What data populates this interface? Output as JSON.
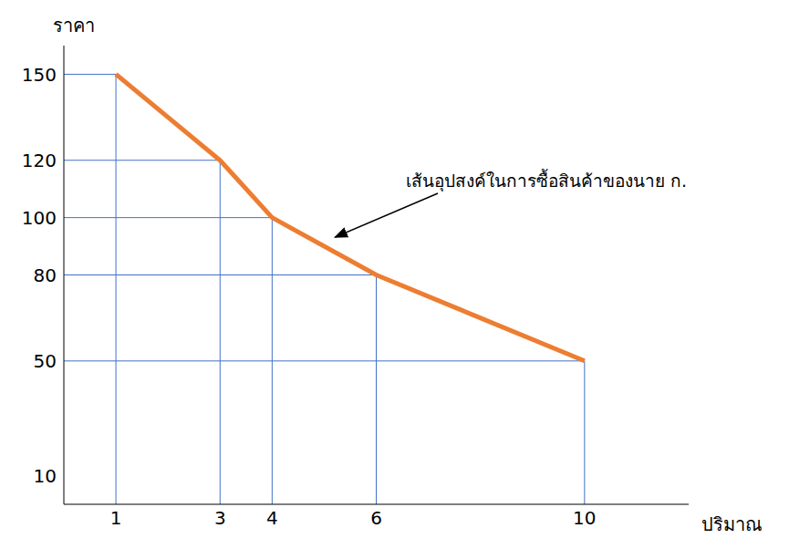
{
  "chart_data": {
    "type": "line",
    "y_label": "ราคา",
    "x_label": "ปริมาณ",
    "annotation": "เส้นอุปสงค์ในการซื้อสินค้าของนาย ก.",
    "x": [
      1,
      3,
      4,
      6,
      10
    ],
    "values": [
      150,
      120,
      100,
      80,
      50
    ],
    "color": "#ed7d31",
    "xlim": [
      0,
      12
    ],
    "ylim": [
      0,
      160
    ],
    "xticks": [
      1,
      3,
      4,
      6,
      10
    ],
    "yticks": [
      10,
      50,
      80,
      100,
      120,
      150
    ],
    "grid": false
  }
}
